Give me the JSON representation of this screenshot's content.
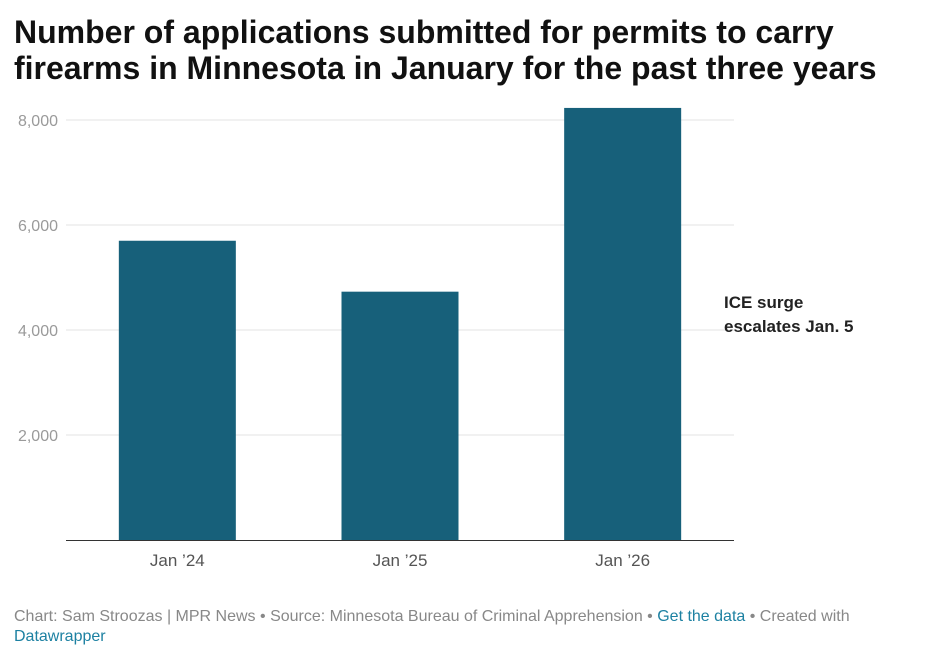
{
  "title": "Number of applications submitted for permits to carry firearms in Minnesota in January for the past three years",
  "chart_data": {
    "type": "bar",
    "categories": [
      "Jan ’24",
      "Jan ’25",
      "Jan ’26"
    ],
    "values": [
      5700,
      4730,
      8230
    ],
    "title": "Number of applications submitted for permits to carry firearms in Minnesota in January for the past three years",
    "xlabel": "",
    "ylabel": "",
    "ylim": [
      0,
      8000
    ],
    "yticks": [
      2000,
      4000,
      6000,
      8000
    ],
    "ytick_labels": [
      "2,000",
      "4,000",
      "6,000",
      "8,000"
    ],
    "grid": true,
    "bar_color": "#17607a",
    "annotation": "ICE surge escalates Jan. 5",
    "annotation_lines": [
      "ICE surge",
      "escalates Jan. 5"
    ]
  },
  "footer": {
    "credit": "Chart: Sam Stroozas | MPR News",
    "sep1": " • ",
    "source": "Source: Minnesota Bureau of Criminal Apprehension",
    "sep2": " • ",
    "get_data": "Get the data",
    "sep3": " • ",
    "created": "Created with ",
    "datawrapper": "Datawrapper"
  }
}
